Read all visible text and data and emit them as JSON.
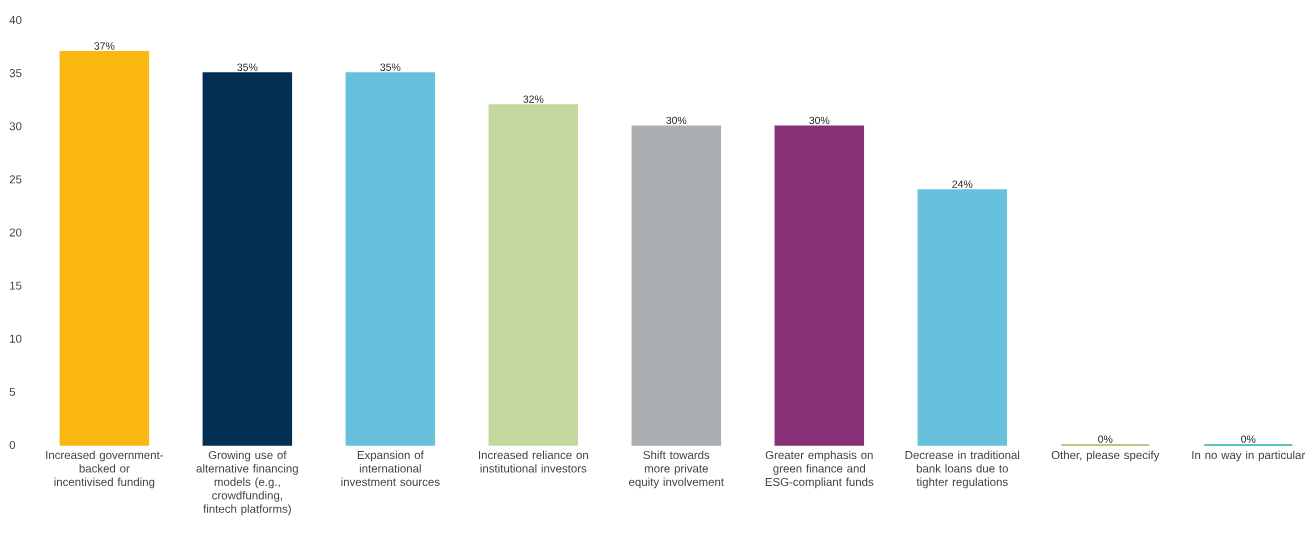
{
  "chart_data": {
    "type": "bar",
    "categories": [
      "Increased government-backed or incentivised funding",
      "Growing use of alternative financing models (e.g., crowdfunding, fintech platforms)",
      "Expansion of international investment sources",
      "Increased reliance on institutional investors",
      "Shift towards more private equity involvement",
      "Greater emphasis on green finance and ESG-compliant funds",
      "Decrease in traditional bank loans due to tighter regulations",
      "Other, please specify",
      "In no way in particular"
    ],
    "values": [
      37,
      35,
      35,
      32,
      30,
      30,
      24,
      0,
      0
    ],
    "value_labels": [
      "37%",
      "35%",
      "35%",
      "32%",
      "30%",
      "30%",
      "24%",
      "0%",
      "0%"
    ],
    "colors": [
      "#fbb812",
      "#032f55",
      "#68c1dc",
      "#c3d89f",
      "#acafb2",
      "#863177",
      "#68c1dc",
      "#9bbb59",
      "#2ab0a0"
    ],
    "ylim": [
      0,
      40
    ],
    "yticks": [
      0,
      5,
      10,
      15,
      20,
      25,
      30,
      35,
      40
    ],
    "grid": false,
    "legend": false
  }
}
